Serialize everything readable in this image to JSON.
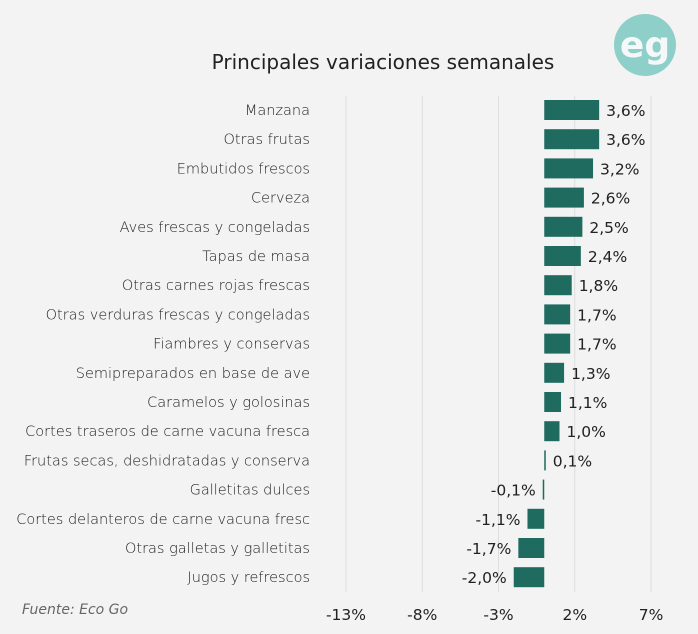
{
  "chart_data": {
    "type": "bar",
    "orientation": "horizontal",
    "title": "Principales variaciones semanales",
    "source": "Fuente: Eco Go",
    "logo_text": "eg",
    "categories": [
      "Manzana",
      "Otras frutas",
      "Embutidos frescos",
      "Cerveza",
      "Aves frescas y congeladas",
      "Tapas de masa",
      "Otras carnes rojas frescas",
      "Otras verduras frescas y congeladas",
      "Fiambres y conservas",
      "Semipreparados en base de ave",
      "Caramelos y golosinas",
      "Cortes traseros de carne vacuna fresca",
      "Frutas secas, deshidratadas y conserva",
      "Galletitas dulces",
      "Cortes delanteros de carne vacuna fresc",
      "Otras galletas y galletitas",
      "Jugos y refrescos"
    ],
    "values": [
      3.6,
      3.6,
      3.2,
      2.6,
      2.5,
      2.4,
      1.8,
      1.7,
      1.7,
      1.3,
      1.1,
      1.0,
      0.1,
      -0.1,
      -1.1,
      -1.7,
      -2.0
    ],
    "data_labels": [
      "3,6%",
      "3,6%",
      "3,2%",
      "2,6%",
      "2,5%",
      "2,4%",
      "1,8%",
      "1,7%",
      "1,7%",
      "1,3%",
      "1,1%",
      "1,0%",
      "0,1%",
      "-0,1%",
      "-1,1%",
      "-1,7%",
      "-2,0%"
    ],
    "xlim": [
      -13,
      7
    ],
    "ticks": [
      -13,
      -8,
      -3,
      2,
      7
    ],
    "tick_labels": [
      "-13%",
      "-8%",
      "-3%",
      "2%",
      "7%"
    ],
    "grid": true,
    "colors": {
      "bar": "#1f6b5f",
      "logo": "#8ecfc9",
      "grid": "#dddddd"
    }
  }
}
